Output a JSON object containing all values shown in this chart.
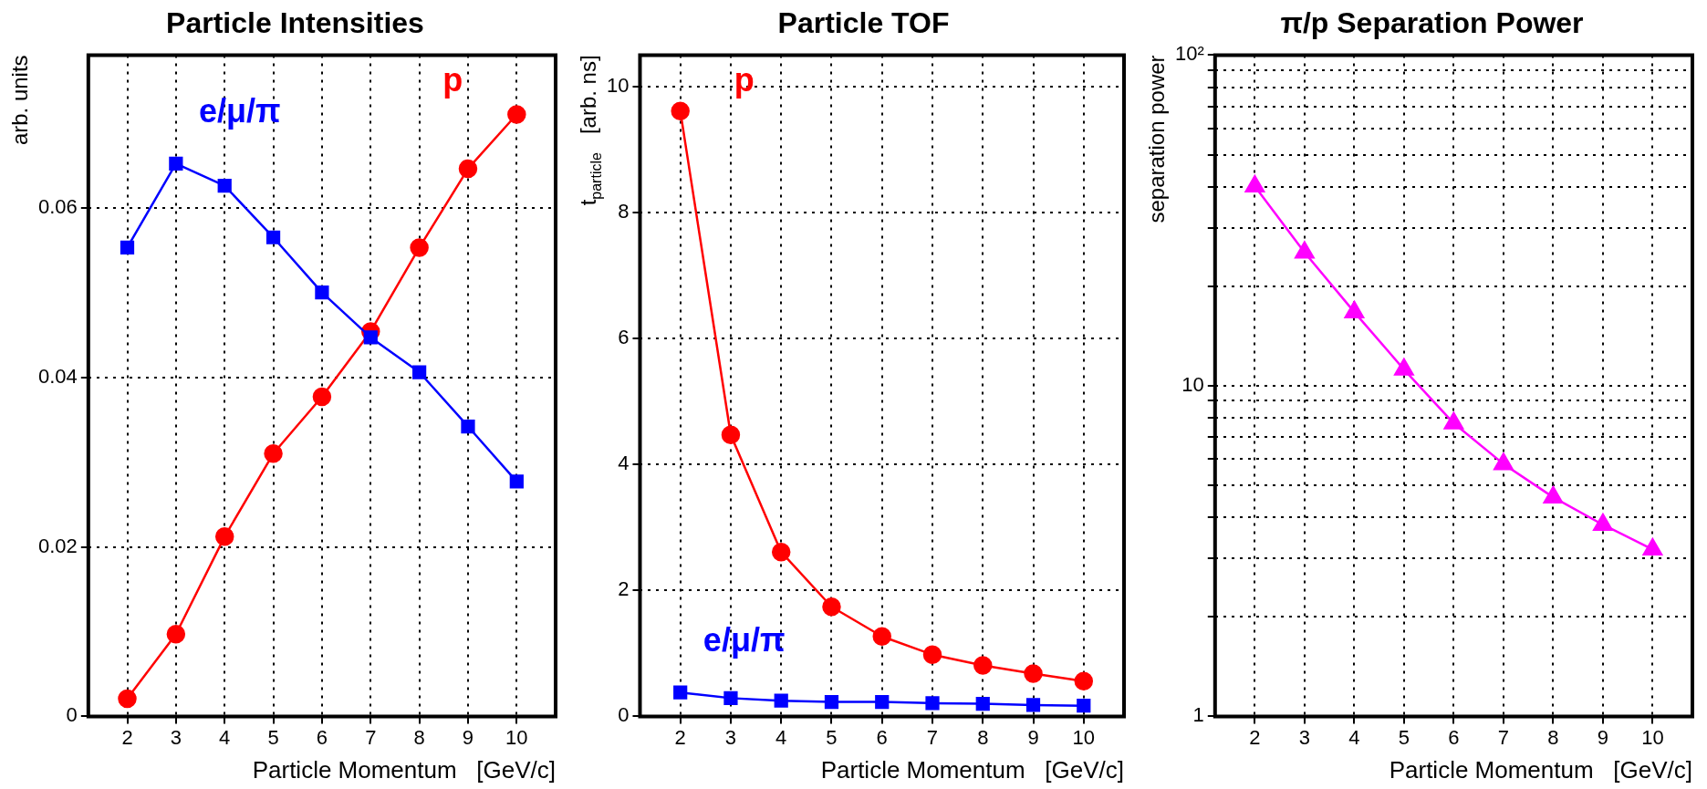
{
  "chart_data": [
    {
      "type": "line",
      "title": "Particle Intensities",
      "xlabel": "Particle Momentum   [GeV/c]",
      "ylabel": "arb. units",
      "x": [
        2,
        3,
        4,
        5,
        6,
        7,
        8,
        9,
        10
      ],
      "xlim": [
        1.2,
        10.8
      ],
      "xticks": [
        2,
        3,
        4,
        5,
        6,
        7,
        8,
        9,
        10
      ],
      "ylim": [
        0,
        0.078
      ],
      "yticks": [
        0,
        0.02,
        0.04,
        0.06
      ],
      "grid": true,
      "line_style": "solid",
      "series": [
        {
          "name": "e/μ/π",
          "color": "#0000ff",
          "marker": "square",
          "values": [
            0.0553,
            0.0652,
            0.0626,
            0.0565,
            0.05,
            0.0447,
            0.0406,
            0.0342,
            0.0277
          ]
        },
        {
          "name": "p",
          "color": "#ff0000",
          "marker": "circle",
          "values": [
            0.0021,
            0.0097,
            0.0212,
            0.031,
            0.0377,
            0.0454,
            0.0553,
            0.0646,
            0.071
          ]
        }
      ]
    },
    {
      "type": "line",
      "title": "Particle TOF",
      "xlabel": "Particle Momentum   [GeV/c]",
      "ylabel": "t$_{particle}$   [arb. ns]",
      "x": [
        2,
        3,
        4,
        5,
        6,
        7,
        8,
        9,
        10
      ],
      "xlim": [
        1.2,
        10.8
      ],
      "xticks": [
        2,
        3,
        4,
        5,
        6,
        7,
        8,
        9,
        10
      ],
      "ylim": [
        0,
        10.5
      ],
      "yticks": [
        0,
        2,
        4,
        6,
        8,
        10
      ],
      "grid": true,
      "line_style": "solid",
      "series": [
        {
          "name": "p",
          "color": "#ff0000",
          "marker": "circle",
          "values": [
            9.61,
            4.47,
            2.61,
            1.74,
            1.27,
            0.98,
            0.81,
            0.68,
            0.56
          ]
        },
        {
          "name": "e/μ/π",
          "color": "#0000ff",
          "marker": "square",
          "values": [
            0.38,
            0.29,
            0.25,
            0.23,
            0.23,
            0.21,
            0.2,
            0.18,
            0.17
          ]
        }
      ]
    },
    {
      "type": "line",
      "title": "π/p Separation Power",
      "xlabel": "Particle Momentum   [GeV/c]",
      "ylabel": "separation power",
      "x": [
        2,
        3,
        4,
        5,
        6,
        7,
        8,
        9,
        10
      ],
      "xlim": [
        1.2,
        10.8
      ],
      "xticks": [
        2,
        3,
        4,
        5,
        6,
        7,
        8,
        9,
        10
      ],
      "ylim": [
        1,
        100
      ],
      "log": "y",
      "grid": true,
      "line_style": "solid",
      "yticks": [
        1,
        {
          "value": 2,
          "label": null
        },
        {
          "value": 3,
          "label": null
        },
        {
          "value": 4,
          "label": null
        },
        {
          "value": 5,
          "label": null
        },
        {
          "value": 6,
          "label": null
        },
        {
          "value": 7,
          "label": null
        },
        {
          "value": 8,
          "label": null
        },
        {
          "value": 9,
          "label": null
        },
        10,
        {
          "value": 20,
          "label": null
        },
        {
          "value": 30,
          "label": null
        },
        {
          "value": 40,
          "label": null
        },
        {
          "value": 50,
          "label": null
        },
        {
          "value": 60,
          "label": null
        },
        {
          "value": 70,
          "label": null
        },
        {
          "value": 80,
          "label": null
        },
        {
          "value": 90,
          "label": null
        },
        {
          "value": 100,
          "label": "10²"
        }
      ],
      "series": [
        {
          "color": "#ff00ff",
          "marker": "triangle",
          "values": [
            40.1,
            25.3,
            16.7,
            11.2,
            7.7,
            5.8,
            4.6,
            3.8,
            3.2
          ]
        }
      ]
    }
  ]
}
